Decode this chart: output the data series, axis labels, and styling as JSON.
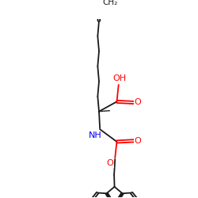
{
  "background_color": "#ffffff",
  "figure_size": [
    2.5,
    2.5
  ],
  "dpi": 100,
  "atom_colors": {
    "O": "#ff0000",
    "N": "#0000ff",
    "C": "#1a1a1a",
    "H": "#1a1a1a"
  },
  "bond_lw": 1.3,
  "font_size": 8.0,
  "xlim": [
    0.0,
    1.0
  ],
  "ylim": [
    0.0,
    1.0
  ]
}
